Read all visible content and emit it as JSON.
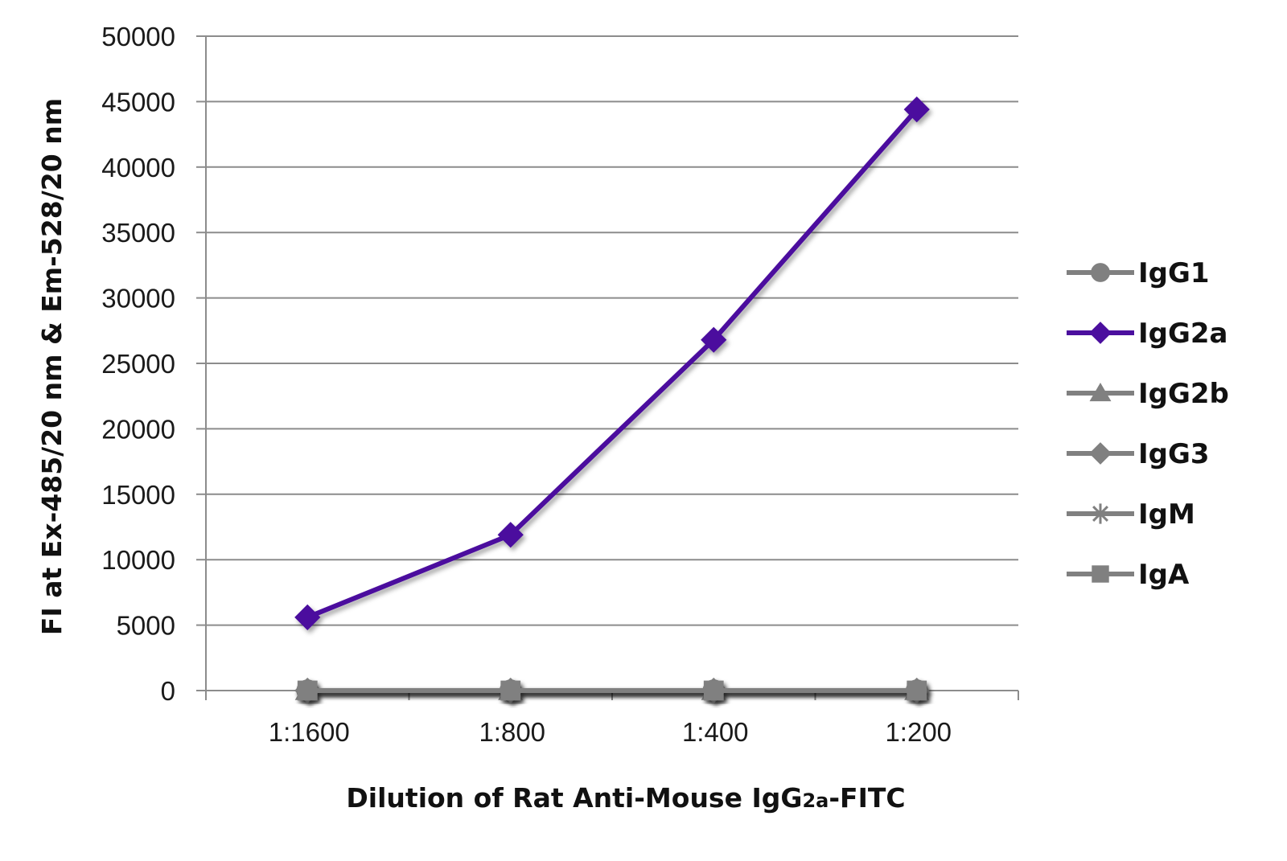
{
  "chart_data": {
    "type": "line",
    "xlabel_main": "Dilution of Rat Anti-Mouse IgG",
    "xlabel_sub": "2a",
    "xlabel_tail": "-FITC",
    "ylabel": "FI at Ex-485/20 nm & Em-528/20 nm",
    "categories": [
      "1:1600",
      "1:800",
      "1:400",
      "1:200"
    ],
    "ylim": [
      0,
      50000
    ],
    "yticks": [
      0,
      5000,
      10000,
      15000,
      20000,
      25000,
      30000,
      35000,
      40000,
      45000,
      50000
    ],
    "grid": true,
    "legend_position": "right",
    "series": [
      {
        "name": "IgG1",
        "values": [
          0,
          0,
          0,
          0
        ],
        "color": "#808080",
        "marker": "circle"
      },
      {
        "name": "IgG2a",
        "values": [
          5600,
          11900,
          26800,
          44400
        ],
        "color": "#4b0f9e",
        "marker": "diamond"
      },
      {
        "name": "IgG2b",
        "values": [
          0,
          0,
          0,
          0
        ],
        "color": "#808080",
        "marker": "triangle"
      },
      {
        "name": "IgG3",
        "values": [
          0,
          0,
          0,
          0
        ],
        "color": "#808080",
        "marker": "diamond"
      },
      {
        "name": "IgM",
        "values": [
          0,
          0,
          0,
          0
        ],
        "color": "#808080",
        "marker": "star"
      },
      {
        "name": "IgA",
        "values": [
          0,
          0,
          0,
          0
        ],
        "color": "#808080",
        "marker": "square"
      }
    ]
  }
}
